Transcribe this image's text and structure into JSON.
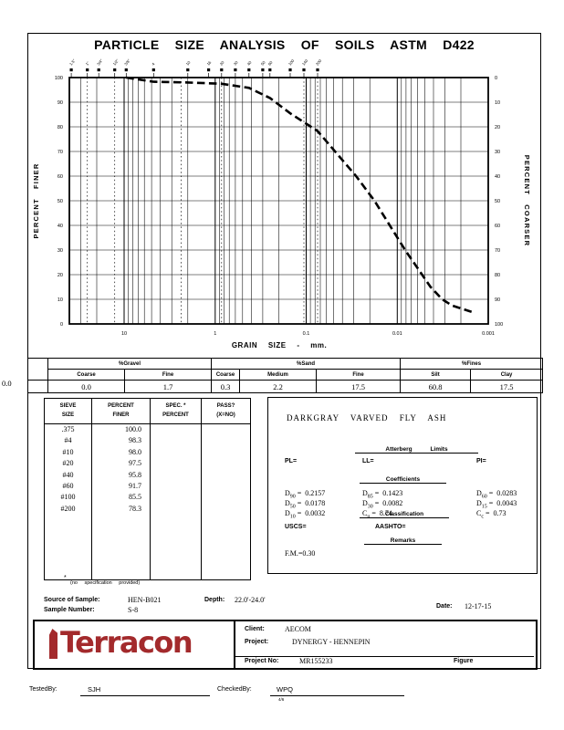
{
  "title": "PARTICLE SIZE ANALYSIS OF SOILS ASTM D422",
  "chart_data": {
    "type": "line",
    "title": "Grain size distribution curve",
    "xlabel": "GRAIN SIZE - mm.",
    "ylabel_left": "PERCENT FINER",
    "ylabel_right": "PERCENT COARSER",
    "x_scale": "log",
    "x_range_mm": [
      40,
      0.001
    ],
    "ylim": [
      0,
      100
    ],
    "grid": true,
    "x_tick_values": [
      10,
      1,
      0.1,
      0.01,
      0.001
    ],
    "x_tick_labels": [
      "10",
      "1",
      "0.1",
      "0.01",
      "0.001"
    ],
    "y_ticks_left": [
      "100",
      "90",
      "80",
      "70",
      "60",
      "50",
      "40",
      "30",
      "20",
      "10",
      "0"
    ],
    "y_ticks_right": [
      "0",
      "10",
      "20",
      "30",
      "40",
      "50",
      "60",
      "70",
      "80",
      "90",
      "100"
    ],
    "sieve_labels": [
      {
        "label": "1.5\"",
        "mm": 38.1
      },
      {
        "label": "1\"",
        "mm": 25.4
      },
      {
        "label": "3/4\"",
        "mm": 19
      },
      {
        "label": "1/2\"",
        "mm": 12.7
      },
      {
        "label": "3/8\"",
        "mm": 9.5
      },
      {
        "label": "4",
        "mm": 4.75
      },
      {
        "label": "10",
        "mm": 2
      },
      {
        "label": "16",
        "mm": 1.18
      },
      {
        "label": "20",
        "mm": 0.85
      },
      {
        "label": "30",
        "mm": 0.6
      },
      {
        "label": "40",
        "mm": 0.425
      },
      {
        "label": "50",
        "mm": 0.3
      },
      {
        "label": "60",
        "mm": 0.25
      },
      {
        "label": "100",
        "mm": 0.15
      },
      {
        "label": "140",
        "mm": 0.106
      },
      {
        "label": "200",
        "mm": 0.075
      }
    ],
    "dotted_lines_mm": [
      25.4,
      12.7,
      2.36,
      0.85,
      0.106,
      0.075
    ],
    "series": [
      {
        "name": "HEN-B021 S-8",
        "style": "dashed",
        "points": [
          [
            9.5,
            100
          ],
          [
            4.75,
            98.3
          ],
          [
            2,
            98.0
          ],
          [
            0.85,
            97.5
          ],
          [
            0.425,
            95.8
          ],
          [
            0.25,
            91.7
          ],
          [
            0.15,
            85.5
          ],
          [
            0.075,
            78.3
          ],
          [
            0.0283,
            60
          ],
          [
            0.0178,
            50
          ],
          [
            0.0082,
            30
          ],
          [
            0.0043,
            15
          ],
          [
            0.0032,
            10
          ],
          [
            0.0025,
            7.5
          ],
          [
            0.0014,
            4.5
          ]
        ]
      }
    ]
  },
  "fractions_table": {
    "cobbles_value": "0.0",
    "group_labels": [
      "%Gravel",
      "%Sand",
      "%Fines"
    ],
    "subheaders": [
      "Coarse",
      "Fine",
      "Coarse",
      "Medium",
      "Fine",
      "Silt",
      "Clay"
    ],
    "values": [
      "0.0",
      "1.7",
      "0.3",
      "2.2",
      "17.5",
      "60.8",
      "17.5"
    ]
  },
  "sieve_table": {
    "col_headers": [
      [
        "SIEVE",
        "SIZE"
      ],
      [
        "PERCENT",
        "FINER"
      ],
      [
        "SPEC. *",
        "PERCENT"
      ],
      [
        "PASS?",
        "(X=NO)"
      ]
    ],
    "rows": [
      [
        ".375",
        "100.0"
      ],
      [
        "#4",
        "98.3"
      ],
      [
        "#10",
        "98.0"
      ],
      [
        "#20",
        "97.5"
      ],
      [
        "#40",
        "95.8"
      ],
      [
        "#60",
        "91.7"
      ],
      [
        "#100",
        "85.5"
      ],
      [
        "#200",
        "78.3"
      ]
    ]
  },
  "description": {
    "material": "DARKGRAY VARVED FLY ASH",
    "atterberg": {
      "heading": "Atterberg Limits",
      "pl_label": "PL=",
      "ll_label": "LL=",
      "pi_label": "PI="
    },
    "coefficients": {
      "heading": "Coefficients",
      "col1": [
        [
          "D",
          "90",
          "0.2157"
        ],
        [
          "D",
          "50",
          "0.0178"
        ],
        [
          "D",
          "10",
          "0.0032"
        ]
      ],
      "col2": [
        [
          "D",
          "85",
          "0.1423"
        ],
        [
          "D",
          "30",
          "0.0082"
        ],
        [
          "C",
          "u",
          "8.74"
        ]
      ],
      "col3": [
        [
          "D",
          "60",
          "0.0283"
        ],
        [
          "D",
          "15",
          "0.0043"
        ],
        [
          "C",
          "c",
          "0.73"
        ]
      ]
    },
    "classification": {
      "heading": "Classification",
      "uscs_label": "USCS=",
      "aashto_label": "AASHTO="
    },
    "remarks": {
      "heading": "Remarks",
      "text": "F.M.=0.30"
    }
  },
  "footnote": {
    "star": "*",
    "text": "(no specification provided)"
  },
  "sample_info": {
    "source_label": "Source of Sample:",
    "source_value": "HEN-B021",
    "depth_label": "Depth:",
    "depth_value": "22.0'-24.0'",
    "number_label": "Sample Number:",
    "number_value": "S-8",
    "date_label": "Date:",
    "date_value": "12-17-15"
  },
  "footer": {
    "logo_text": "Terracon",
    "logo_color": "#A32A2C",
    "client_label": "Client:",
    "client_value": "AECOM",
    "project_label": "Project:",
    "project_value": "DYNERGY - HENNEPIN",
    "project_no_label": "Project No:",
    "project_no_value": "MR155233",
    "figure_label": "Figure"
  },
  "signoff": {
    "tested_label": "TestedBy:",
    "tested_value": "SJH",
    "checked_label": "CheckedBy:",
    "checked_value": "WPQ",
    "checked_note": "4/6"
  }
}
